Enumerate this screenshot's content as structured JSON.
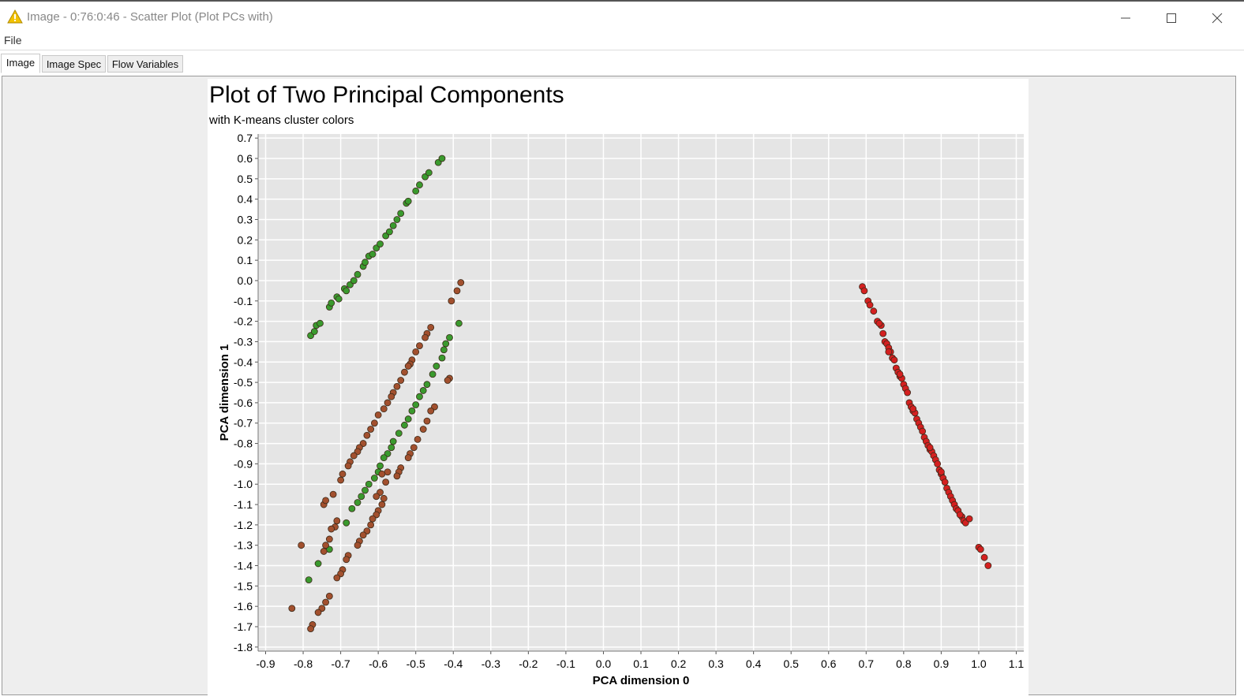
{
  "window": {
    "title": "Image - 0:76:0:46 - Scatter Plot (Plot PCs with)",
    "icon": "warning-triangle-icon",
    "controls": [
      "minimize-icon",
      "maximize-icon",
      "close-icon"
    ]
  },
  "menu": {
    "file": "File"
  },
  "tabs": [
    {
      "label": "Image",
      "active": true
    },
    {
      "label": "Image Spec",
      "active": false
    },
    {
      "label": "Flow Variables",
      "active": false
    }
  ],
  "chart_data": {
    "type": "scatter",
    "title": "Plot of Two Principal Components",
    "subtitle": "with K-means cluster colors",
    "xlabel": "PCA dimension 0",
    "ylabel": "PCA dimension 1",
    "xlim": [
      -0.92,
      1.12
    ],
    "ylim": [
      -1.82,
      0.72
    ],
    "grid": true,
    "xticks": [
      "-0.9",
      "-0.8",
      "-0.7",
      "-0.6",
      "-0.5",
      "-0.4",
      "-0.3",
      "-0.2",
      "-0.1",
      "0.0",
      "0.1",
      "0.2",
      "0.3",
      "0.4",
      "0.5",
      "0.6",
      "0.7",
      "0.8",
      "0.9",
      "1.0",
      "1.1"
    ],
    "yticks": [
      "0.7",
      "0.6",
      "0.5",
      "0.4",
      "0.3",
      "0.2",
      "0.1",
      "0.0",
      "-0.1",
      "-0.2",
      "-0.3",
      "-0.4",
      "-0.5",
      "-0.6",
      "-0.7",
      "-0.8",
      "-0.9",
      "-1.0",
      "-1.1",
      "-1.2",
      "-1.3",
      "-1.4",
      "-1.5",
      "-1.6",
      "-1.7",
      "-1.8"
    ],
    "colors": {
      "green": "#3a9a2e",
      "brown": "#a2502e",
      "red": "#d42020",
      "plot_bg": "#e5e5e5",
      "grid": "#ffffff"
    },
    "series": [
      {
        "color": "green",
        "points": [
          [
            -0.78,
            -0.27
          ],
          [
            -0.77,
            -0.25
          ],
          [
            -0.765,
            -0.22
          ],
          [
            -0.755,
            -0.21
          ],
          [
            -0.73,
            -0.13
          ],
          [
            -0.725,
            -0.11
          ],
          [
            -0.71,
            -0.08
          ],
          [
            -0.705,
            -0.09
          ],
          [
            -0.69,
            -0.04
          ],
          [
            -0.685,
            -0.05
          ],
          [
            -0.675,
            -0.02
          ],
          [
            -0.665,
            0.0
          ],
          [
            -0.655,
            0.03
          ],
          [
            -0.64,
            0.07
          ],
          [
            -0.635,
            0.09
          ],
          [
            -0.625,
            0.12
          ],
          [
            -0.615,
            0.13
          ],
          [
            -0.605,
            0.16
          ],
          [
            -0.595,
            0.18
          ],
          [
            -0.58,
            0.22
          ],
          [
            -0.57,
            0.24
          ],
          [
            -0.56,
            0.27
          ],
          [
            -0.55,
            0.3
          ],
          [
            -0.54,
            0.33
          ],
          [
            -0.525,
            0.38
          ],
          [
            -0.52,
            0.39
          ],
          [
            -0.5,
            0.44
          ],
          [
            -0.49,
            0.47
          ],
          [
            -0.475,
            0.51
          ],
          [
            -0.465,
            0.53
          ],
          [
            -0.44,
            0.58
          ],
          [
            -0.43,
            0.6
          ],
          [
            -0.385,
            -0.21
          ],
          [
            -0.41,
            -0.28
          ],
          [
            -0.42,
            -0.31
          ],
          [
            -0.425,
            -0.34
          ],
          [
            -0.43,
            -0.38
          ],
          [
            -0.445,
            -0.42
          ],
          [
            -0.455,
            -0.46
          ],
          [
            -0.47,
            -0.51
          ],
          [
            -0.48,
            -0.54
          ],
          [
            -0.49,
            -0.57
          ],
          [
            -0.5,
            -0.61
          ],
          [
            -0.51,
            -0.64
          ],
          [
            -0.52,
            -0.68
          ],
          [
            -0.53,
            -0.71
          ],
          [
            -0.545,
            -0.75
          ],
          [
            -0.56,
            -0.79
          ],
          [
            -0.565,
            -0.82
          ],
          [
            -0.575,
            -0.85
          ],
          [
            -0.585,
            -0.87
          ],
          [
            -0.595,
            -0.91
          ],
          [
            -0.6,
            -0.94
          ],
          [
            -0.61,
            -0.97
          ],
          [
            -0.625,
            -1.0
          ],
          [
            -0.635,
            -1.03
          ],
          [
            -0.645,
            -1.06
          ],
          [
            -0.655,
            -1.09
          ],
          [
            -0.67,
            -1.12
          ],
          [
            -0.685,
            -1.19
          ],
          [
            -0.76,
            -1.39
          ],
          [
            -0.785,
            -1.47
          ],
          [
            -0.73,
            -1.32
          ]
        ]
      },
      {
        "color": "brown",
        "points": [
          [
            -0.38,
            -0.01
          ],
          [
            -0.39,
            -0.05
          ],
          [
            -0.405,
            -0.1
          ],
          [
            -0.46,
            -0.23
          ],
          [
            -0.47,
            -0.26
          ],
          [
            -0.475,
            -0.28
          ],
          [
            -0.49,
            -0.32
          ],
          [
            -0.5,
            -0.35
          ],
          [
            -0.51,
            -0.39
          ],
          [
            -0.515,
            -0.41
          ],
          [
            -0.52,
            -0.42
          ],
          [
            -0.53,
            -0.45
          ],
          [
            -0.54,
            -0.49
          ],
          [
            -0.55,
            -0.52
          ],
          [
            -0.56,
            -0.55
          ],
          [
            -0.565,
            -0.57
          ],
          [
            -0.575,
            -0.6
          ],
          [
            -0.585,
            -0.63
          ],
          [
            -0.6,
            -0.66
          ],
          [
            -0.61,
            -0.7
          ],
          [
            -0.62,
            -0.73
          ],
          [
            -0.63,
            -0.76
          ],
          [
            -0.64,
            -0.8
          ],
          [
            -0.65,
            -0.82
          ],
          [
            -0.655,
            -0.84
          ],
          [
            -0.665,
            -0.86
          ],
          [
            -0.675,
            -0.89
          ],
          [
            -0.68,
            -0.91
          ],
          [
            -0.695,
            -0.95
          ],
          [
            -0.7,
            -0.98
          ],
          [
            -0.745,
            -1.1
          ],
          [
            -0.74,
            -1.08
          ],
          [
            -0.72,
            -1.05
          ],
          [
            -0.71,
            -1.18
          ],
          [
            -0.715,
            -1.21
          ],
          [
            -0.725,
            -1.22
          ],
          [
            -0.73,
            -1.27
          ],
          [
            -0.74,
            -1.3
          ],
          [
            -0.745,
            -1.33
          ],
          [
            -0.805,
            -1.3
          ],
          [
            -0.68,
            -1.35
          ],
          [
            -0.685,
            -1.37
          ],
          [
            -0.695,
            -1.42
          ],
          [
            -0.7,
            -1.44
          ],
          [
            -0.71,
            -1.46
          ],
          [
            -0.73,
            -1.55
          ],
          [
            -0.74,
            -1.58
          ],
          [
            -0.75,
            -1.61
          ],
          [
            -0.76,
            -1.63
          ],
          [
            -0.775,
            -1.69
          ],
          [
            -0.78,
            -1.71
          ],
          [
            -0.83,
            -1.61
          ],
          [
            -0.41,
            -0.48
          ],
          [
            -0.415,
            -0.49
          ],
          [
            -0.45,
            -0.62
          ],
          [
            -0.46,
            -0.64
          ],
          [
            -0.47,
            -0.69
          ],
          [
            -0.48,
            -0.73
          ],
          [
            -0.495,
            -0.78
          ],
          [
            -0.505,
            -0.82
          ],
          [
            -0.515,
            -0.85
          ],
          [
            -0.52,
            -0.87
          ],
          [
            -0.54,
            -0.92
          ],
          [
            -0.545,
            -0.94
          ],
          [
            -0.55,
            -0.96
          ],
          [
            -0.58,
            -0.99
          ],
          [
            -0.585,
            -1.07
          ],
          [
            -0.59,
            -1.1
          ],
          [
            -0.6,
            -1.13
          ],
          [
            -0.605,
            -1.15
          ],
          [
            -0.615,
            -1.17
          ],
          [
            -0.62,
            -1.2
          ],
          [
            -0.63,
            -1.23
          ],
          [
            -0.64,
            -1.25
          ],
          [
            -0.65,
            -1.28
          ],
          [
            -0.655,
            -1.3
          ],
          [
            -0.595,
            -1.04
          ],
          [
            -0.605,
            -1.06
          ],
          [
            -0.575,
            -0.94
          ],
          [
            -0.59,
            -0.95
          ]
        ]
      },
      {
        "color": "red",
        "points": [
          [
            0.69,
            -0.03
          ],
          [
            0.695,
            -0.05
          ],
          [
            0.705,
            -0.1
          ],
          [
            0.71,
            -0.12
          ],
          [
            0.72,
            -0.15
          ],
          [
            0.73,
            -0.2
          ],
          [
            0.74,
            -0.22
          ],
          [
            0.735,
            -0.21
          ],
          [
            0.745,
            -0.26
          ],
          [
            0.75,
            -0.3
          ],
          [
            0.755,
            -0.31
          ],
          [
            0.76,
            -0.33
          ],
          [
            0.765,
            -0.35
          ],
          [
            0.77,
            -0.38
          ],
          [
            0.775,
            -0.39
          ],
          [
            0.78,
            -0.43
          ],
          [
            0.785,
            -0.45
          ],
          [
            0.79,
            -0.47
          ],
          [
            0.795,
            -0.48
          ],
          [
            0.8,
            -0.51
          ],
          [
            0.805,
            -0.53
          ],
          [
            0.81,
            -0.55
          ],
          [
            0.815,
            -0.6
          ],
          [
            0.82,
            -0.62
          ],
          [
            0.825,
            -0.64
          ],
          [
            0.83,
            -0.65
          ],
          [
            0.835,
            -0.68
          ],
          [
            0.84,
            -0.7
          ],
          [
            0.845,
            -0.72
          ],
          [
            0.85,
            -0.74
          ],
          [
            0.855,
            -0.77
          ],
          [
            0.86,
            -0.79
          ],
          [
            0.865,
            -0.81
          ],
          [
            0.87,
            -0.83
          ],
          [
            0.875,
            -0.84
          ],
          [
            0.88,
            -0.86
          ],
          [
            0.885,
            -0.88
          ],
          [
            0.89,
            -0.9
          ],
          [
            0.895,
            -0.93
          ],
          [
            0.9,
            -0.95
          ],
          [
            0.905,
            -0.97
          ],
          [
            0.91,
            -0.99
          ],
          [
            0.915,
            -1.02
          ],
          [
            0.92,
            -1.04
          ],
          [
            0.925,
            -1.06
          ],
          [
            0.93,
            -1.08
          ],
          [
            0.935,
            -1.1
          ],
          [
            0.94,
            -1.12
          ],
          [
            0.945,
            -1.13
          ],
          [
            0.955,
            -1.16
          ],
          [
            0.96,
            -1.18
          ],
          [
            0.965,
            -1.19
          ],
          [
            0.975,
            -1.17
          ],
          [
            1.0,
            -1.31
          ],
          [
            1.005,
            -1.32
          ],
          [
            1.015,
            -1.36
          ],
          [
            1.025,
            -1.4
          ],
          [
            0.95,
            -1.15
          ],
          [
            0.87,
            -0.82
          ],
          [
            0.825,
            -0.63
          ],
          [
            0.79,
            -0.46
          ],
          [
            0.76,
            -0.35
          ],
          [
            0.9,
            -0.94
          ]
        ]
      }
    ]
  }
}
